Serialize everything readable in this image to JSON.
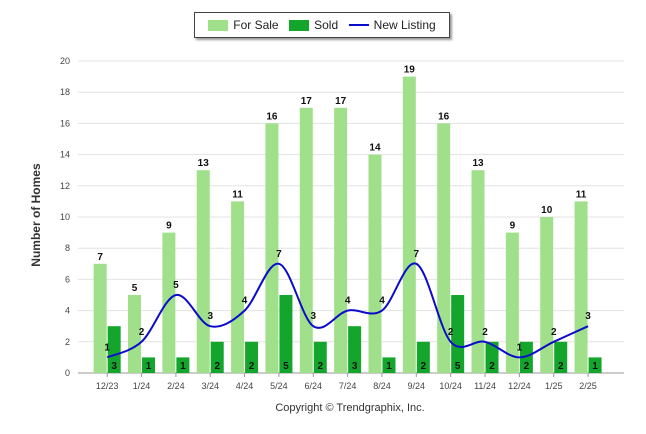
{
  "legend": {
    "for_sale": "For Sale",
    "sold": "Sold",
    "new_listing": "New Listing"
  },
  "colors": {
    "for_sale": "#a1e08a",
    "sold": "#14a62c",
    "new_listing": "#0b0bcc"
  },
  "copyright": "Copyright © Trendgraphix, Inc.",
  "chart_data": {
    "type": "bar",
    "categories": [
      "12/23",
      "1/24",
      "2/24",
      "3/24",
      "4/24",
      "5/24",
      "6/24",
      "7/24",
      "8/24",
      "9/24",
      "10/24",
      "11/24",
      "12/24",
      "1/25",
      "2/25"
    ],
    "series": [
      {
        "name": "For Sale",
        "type": "bar",
        "values": [
          7,
          5,
          9,
          13,
          11,
          16,
          17,
          17,
          14,
          19,
          16,
          13,
          9,
          10,
          11
        ]
      },
      {
        "name": "Sold",
        "type": "bar",
        "values": [
          3,
          1,
          1,
          2,
          2,
          5,
          2,
          3,
          1,
          2,
          5,
          2,
          2,
          2,
          1
        ]
      },
      {
        "name": "New Listing",
        "type": "line",
        "values": [
          1,
          2,
          5,
          3,
          4,
          7,
          3,
          4,
          4,
          7,
          2,
          2,
          1,
          2,
          3
        ]
      }
    ],
    "ylabel": "Number of Homes",
    "xlabel": "",
    "ylim": [
      0,
      20
    ],
    "yticks": [
      0,
      2,
      4,
      6,
      8,
      10,
      12,
      14,
      16,
      18,
      20
    ],
    "grid": true,
    "legend_position": "top-center"
  }
}
